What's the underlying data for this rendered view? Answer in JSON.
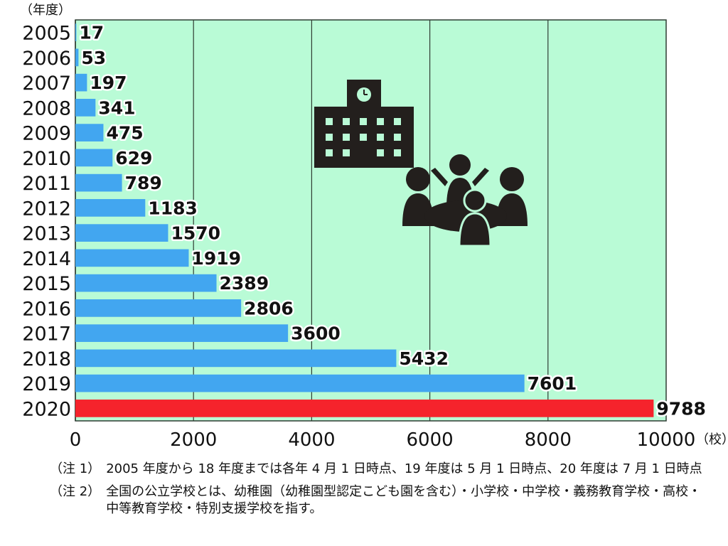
{
  "chart_data": {
    "type": "bar",
    "orientation": "horizontal",
    "ylabel": "（年度）",
    "unit": "（校）",
    "categories": [
      "2005",
      "2006",
      "2007",
      "2008",
      "2009",
      "2010",
      "2011",
      "2012",
      "2013",
      "2014",
      "2015",
      "2016",
      "2017",
      "2018",
      "2019",
      "2020"
    ],
    "values": [
      17,
      53,
      197,
      341,
      475,
      629,
      789,
      1183,
      1570,
      1919,
      2389,
      2806,
      3600,
      5432,
      7601,
      9788
    ],
    "xlim": [
      0,
      10000
    ],
    "xticks": [
      0,
      2000,
      4000,
      6000,
      8000,
      10000
    ],
    "grid": true,
    "highlight_category": "2020",
    "colors": {
      "bar": "#42a6f0",
      "highlight": "#f5232c",
      "plot_bg": "#b9fbd6",
      "grid": "#2f3d33",
      "icon": "#231f1d"
    }
  },
  "illustration": {
    "icon": "school-and-people-icon"
  },
  "notes": [
    {
      "label": "（注 1）",
      "text": "2005 年度から 18 年度までは各年 4 月 1 日時点、19 年度は 5 月 1 日時点、20 年度は 7 月 1 日時点"
    },
    {
      "label": "（注 2）",
      "text": "全国の公立学校とは、幼稚園（幼稚園型認定こども園を含む）・小学校・中学校・義務教育学校・高校・中等教育学校・特別支援学校を指す。"
    }
  ]
}
